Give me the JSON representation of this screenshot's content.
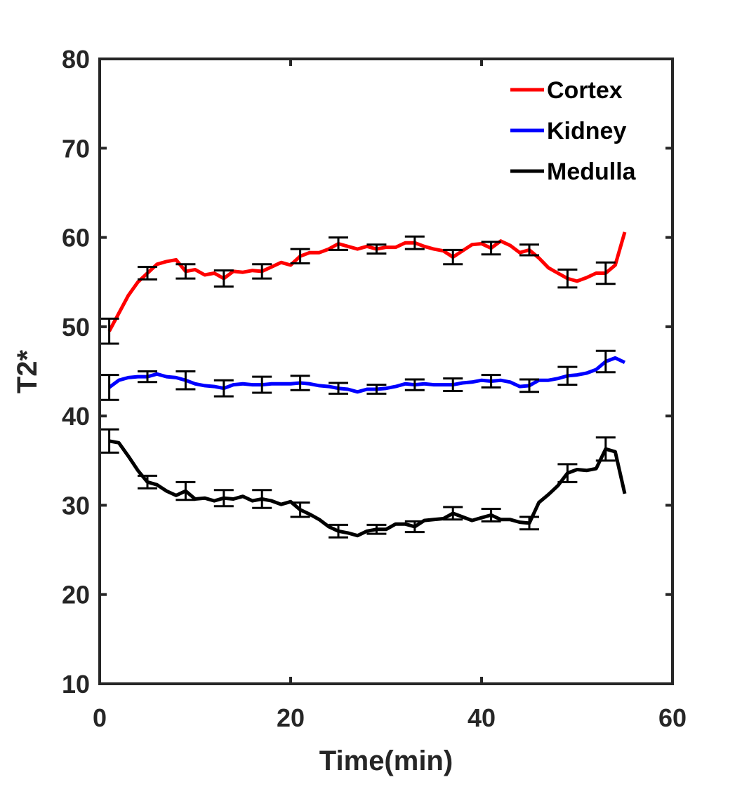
{
  "chart_data": {
    "type": "line",
    "xlabel": "Time(min)",
    "ylabel": "T2*",
    "xlim": [
      0,
      60
    ],
    "ylim": [
      10,
      80
    ],
    "xticks": [
      0,
      20,
      40,
      60
    ],
    "yticks": [
      10,
      20,
      30,
      40,
      50,
      60,
      70,
      80
    ],
    "grid": false,
    "legend_position": "top-right",
    "x": [
      1,
      2,
      3,
      4,
      5,
      6,
      7,
      8,
      9,
      10,
      11,
      12,
      13,
      14,
      15,
      16,
      17,
      18,
      19,
      20,
      21,
      22,
      23,
      24,
      25,
      26,
      27,
      28,
      29,
      30,
      31,
      32,
      33,
      34,
      35,
      36,
      37,
      38,
      39,
      40,
      41,
      42,
      43,
      44,
      45,
      46,
      47,
      48,
      49,
      50,
      51,
      52,
      53,
      54,
      55
    ],
    "error_x": [
      1,
      5,
      9,
      13,
      17,
      21,
      25,
      29,
      33,
      37,
      41,
      45,
      49,
      53
    ],
    "series": [
      {
        "name": "Cortex",
        "color": "#ff0000",
        "values": [
          49.5,
          51.5,
          53.5,
          55,
          56,
          57,
          57.3,
          57.5,
          56.2,
          56.4,
          55.8,
          56,
          55.4,
          56.2,
          56.1,
          56.3,
          56.2,
          56.7,
          57.2,
          56.9,
          57.9,
          58.3,
          58.3,
          58.7,
          59.3,
          59,
          58.7,
          59,
          58.7,
          58.9,
          58.9,
          59.4,
          59.4,
          59,
          58.7,
          58.5,
          57.8,
          58.5,
          59.2,
          59.3,
          58.8,
          59.6,
          59.1,
          58.3,
          58.6,
          57.7,
          56.6,
          56,
          55.4,
          55.1,
          55.5,
          56,
          56,
          56.9,
          60.6
        ],
        "errors": [
          1.4,
          0.7,
          0.8,
          0.9,
          0.8,
          0.8,
          0.7,
          0.5,
          0.7,
          0.8,
          0.7,
          0.6,
          1.0,
          1.2
        ]
      },
      {
        "name": "Kidney",
        "color": "#0000ff",
        "values": [
          43.2,
          44,
          44.3,
          44.4,
          44.4,
          44.7,
          44.4,
          44.3,
          44,
          43.6,
          43.4,
          43.3,
          43.1,
          43.5,
          43.6,
          43.5,
          43.5,
          43.6,
          43.6,
          43.6,
          43.7,
          43.6,
          43.4,
          43.3,
          43.1,
          43,
          42.7,
          43,
          43,
          43.1,
          43.3,
          43.6,
          43.5,
          43.6,
          43.5,
          43.5,
          43.5,
          43.7,
          43.8,
          44,
          43.9,
          44,
          43.8,
          43.3,
          43.4,
          44,
          44,
          44.2,
          44.5,
          44.6,
          44.8,
          45.2,
          46.1,
          46.5,
          46
        ],
        "errors": [
          1.4,
          0.6,
          1.0,
          0.9,
          0.9,
          0.8,
          0.6,
          0.5,
          0.6,
          0.7,
          0.7,
          0.7,
          1.0,
          1.2
        ]
      },
      {
        "name": "Medulla",
        "color": "#000000",
        "values": [
          37.2,
          37,
          35.5,
          33.9,
          32.6,
          32.3,
          31.6,
          31.1,
          31.6,
          30.7,
          30.8,
          30.5,
          30.8,
          30.7,
          31,
          30.5,
          30.7,
          30.5,
          30.1,
          30.4,
          29.5,
          29,
          28.4,
          27.6,
          27.1,
          26.9,
          26.6,
          27.1,
          27.3,
          27.3,
          27.9,
          27.9,
          27.6,
          28.3,
          28.4,
          28.5,
          29.1,
          28.7,
          28.3,
          28.6,
          28.9,
          28.4,
          28.4,
          28.1,
          28,
          30.3,
          31.2,
          32.2,
          33.6,
          34,
          33.9,
          34.1,
          36.3,
          36,
          31.3
        ],
        "errors": [
          1.3,
          0.7,
          1.0,
          0.9,
          1.0,
          0.8,
          0.7,
          0.5,
          0.6,
          0.7,
          0.7,
          0.7,
          1.0,
          1.3
        ]
      }
    ]
  }
}
